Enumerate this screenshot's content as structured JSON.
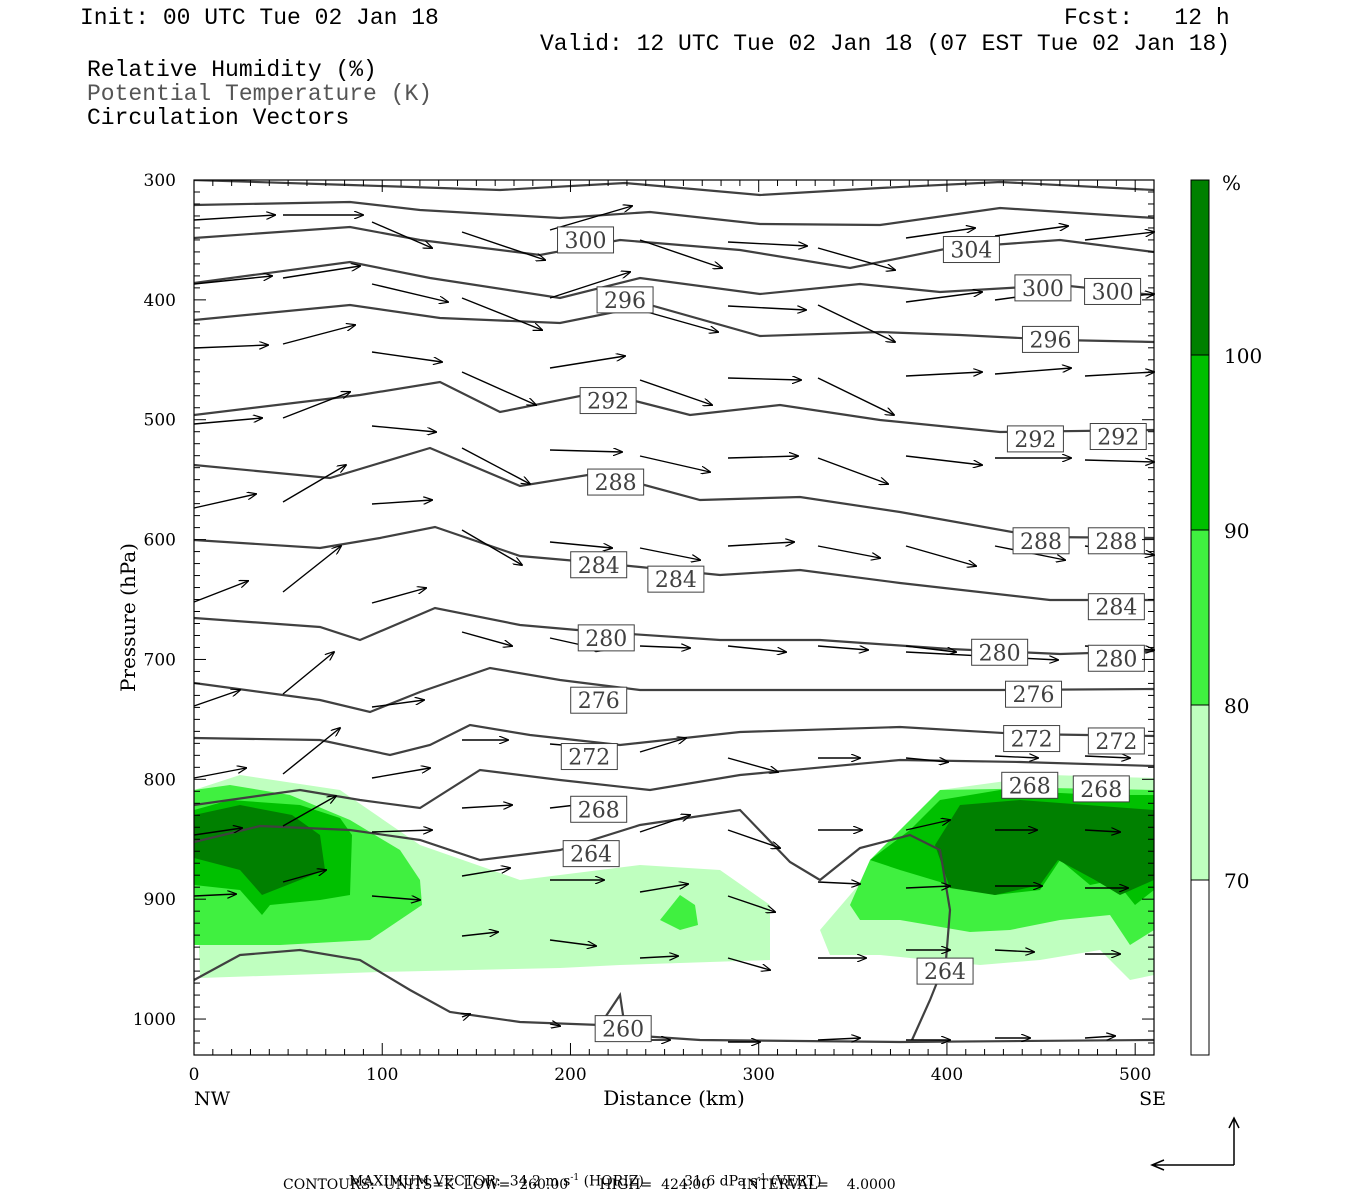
{
  "header": {
    "init": "Init: 00 UTC Tue 02 Jan 18",
    "fcst": "Fcst:   12 h",
    "valid": "Valid: 12 UTC Tue 02 Jan 18 (07 EST Tue 02 Jan 18)",
    "field1": "Relative Humidity (%)",
    "field2": "Potential Temperature (K)",
    "field3": "Circulation Vectors"
  },
  "footer": {
    "max_vector_label": "MAXIMUM VECTOR:",
    "max_vector_horiz": "34.2 m s",
    "horiz_exp": "-1",
    "horiz_tag": "(HORIZ)",
    "max_vector_vert": "31.6 dPa s",
    "vert_exp": "-1",
    "vert_tag": "(VERT)",
    "contours_line": "CONTOURS:  UNITS=K  LOW=  260.00       HIGH=  424.00       INTERVAL=    4.0000"
  },
  "colors": {
    "rh70": "#bfffbf",
    "rh80": "#40f040",
    "rh90": "#00c000",
    "rh100": "#008000",
    "theta": "#404040",
    "vector": "#000000"
  },
  "chart_data": {
    "type": "cross-section",
    "xlabel": "Distance (km)",
    "ylabel": "Pressure (hPa)",
    "xlim": [
      0,
      510
    ],
    "ylim": [
      1030,
      300
    ],
    "x_ticks": [
      0,
      100,
      200,
      300,
      400,
      500
    ],
    "y_ticks": [
      300,
      400,
      500,
      600,
      700,
      800,
      900,
      1000
    ],
    "x_end_labels": [
      "NW",
      "SE"
    ],
    "colorbar": {
      "unit": "%",
      "levels": [
        70,
        80,
        90,
        100
      ],
      "colors": [
        "#ffffff",
        "#bfffbf",
        "#40f040",
        "#00c000",
        "#008000"
      ]
    },
    "theta_contour_labels": [
      {
        "value": 304,
        "x": 413,
        "p": 358
      },
      {
        "value": 300,
        "x": 208,
        "p": 350
      },
      {
        "value": 300,
        "x": 451,
        "p": 390
      },
      {
        "value": 300,
        "x": 488,
        "p": 393
      },
      {
        "value": 296,
        "x": 229,
        "p": 400
      },
      {
        "value": 296,
        "x": 455,
        "p": 433
      },
      {
        "value": 292,
        "x": 220,
        "p": 484
      },
      {
        "value": 292,
        "x": 447,
        "p": 516
      },
      {
        "value": 292,
        "x": 491,
        "p": 514
      },
      {
        "value": 288,
        "x": 224,
        "p": 552
      },
      {
        "value": 288,
        "x": 450,
        "p": 601
      },
      {
        "value": 288,
        "x": 490,
        "p": 601
      },
      {
        "value": 284,
        "x": 215,
        "p": 621
      },
      {
        "value": 284,
        "x": 256,
        "p": 633
      },
      {
        "value": 284,
        "x": 490,
        "p": 656
      },
      {
        "value": 280,
        "x": 219,
        "p": 682
      },
      {
        "value": 280,
        "x": 428,
        "p": 694
      },
      {
        "value": 280,
        "x": 490,
        "p": 699
      },
      {
        "value": 276,
        "x": 215,
        "p": 734
      },
      {
        "value": 276,
        "x": 446,
        "p": 729
      },
      {
        "value": 272,
        "x": 210,
        "p": 781
      },
      {
        "value": 272,
        "x": 445,
        "p": 766
      },
      {
        "value": 272,
        "x": 490,
        "p": 768
      },
      {
        "value": 268,
        "x": 215,
        "p": 825
      },
      {
        "value": 268,
        "x": 444,
        "p": 805
      },
      {
        "value": 268,
        "x": 482,
        "p": 808
      },
      {
        "value": 264,
        "x": 211,
        "p": 862
      },
      {
        "value": 264,
        "x": 399,
        "p": 960
      },
      {
        "value": 260,
        "x": 228,
        "p": 1008
      }
    ],
    "vector_maximum": {
      "horizontal_m_s": 34.2,
      "vertical_dPa_s": 31.6
    }
  }
}
